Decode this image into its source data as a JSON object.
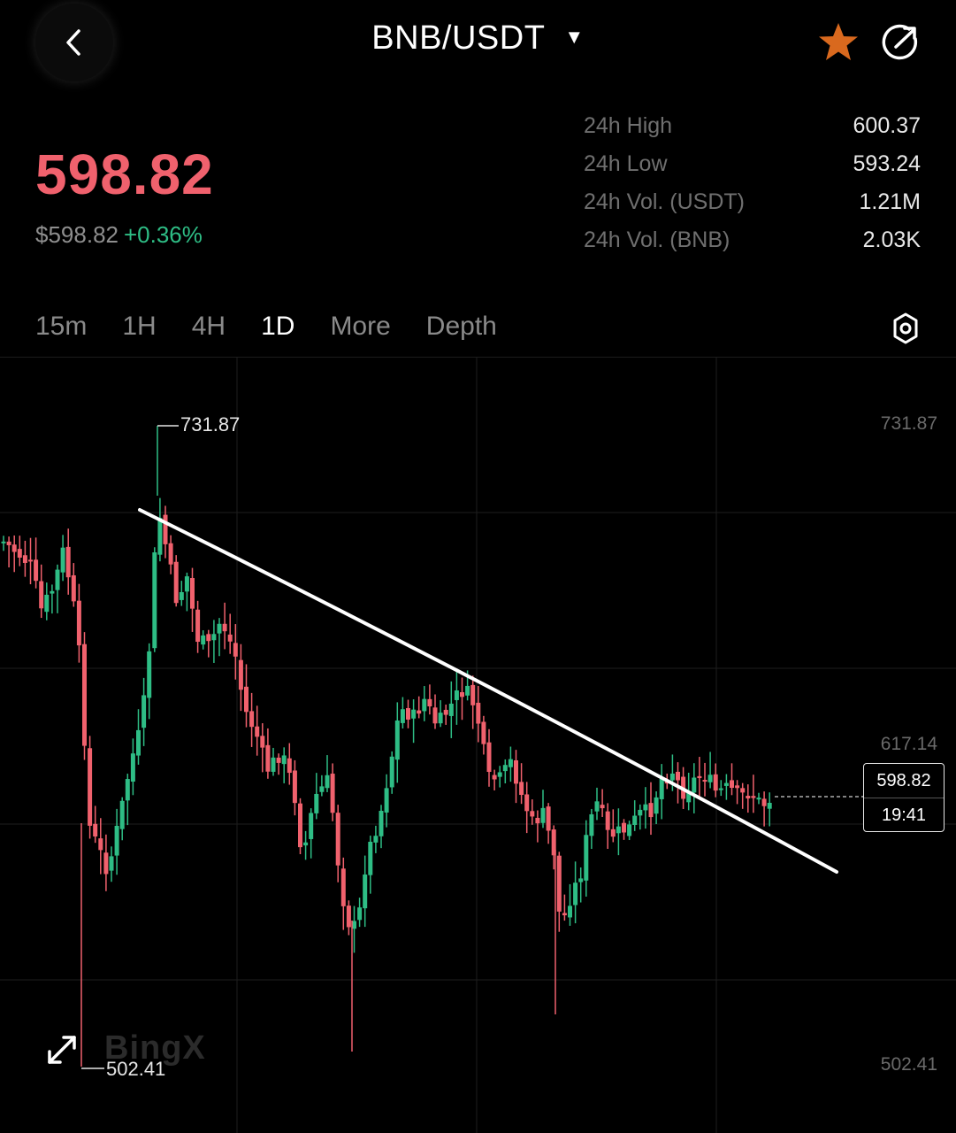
{
  "header": {
    "pair": "BNB/USDT",
    "caret_icon": "triangle-down-icon",
    "favorite_color": "#d9691e"
  },
  "ticker": {
    "last_price": "598.82",
    "usd_price": "$598.82",
    "change": "+0.36%",
    "price_color": "#f0616d",
    "change_color": "#2ebd85"
  },
  "stats": [
    {
      "label": "24h High",
      "value": "600.37"
    },
    {
      "label": "24h Low",
      "value": "593.24"
    },
    {
      "label": "24h Vol. (USDT)",
      "value": "1.21M"
    },
    {
      "label": "24h Vol. (BNB)",
      "value": "2.03K"
    }
  ],
  "tabs": [
    {
      "label": "15m",
      "active": false
    },
    {
      "label": "1H",
      "active": false
    },
    {
      "label": "4H",
      "active": false
    },
    {
      "label": "1D",
      "active": true
    },
    {
      "label": "More",
      "active": false
    },
    {
      "label": "Depth",
      "active": false
    }
  ],
  "chart": {
    "axis_top": "731.87",
    "axis_mid": "617.14",
    "axis_bottom": "502.41",
    "high_marker": "731.87",
    "low_marker": "502.41",
    "current_price": "598.82",
    "countdown": "19:41",
    "watermark": "BingX",
    "up_color": "#2ebd85",
    "down_color": "#f0616d"
  }
}
